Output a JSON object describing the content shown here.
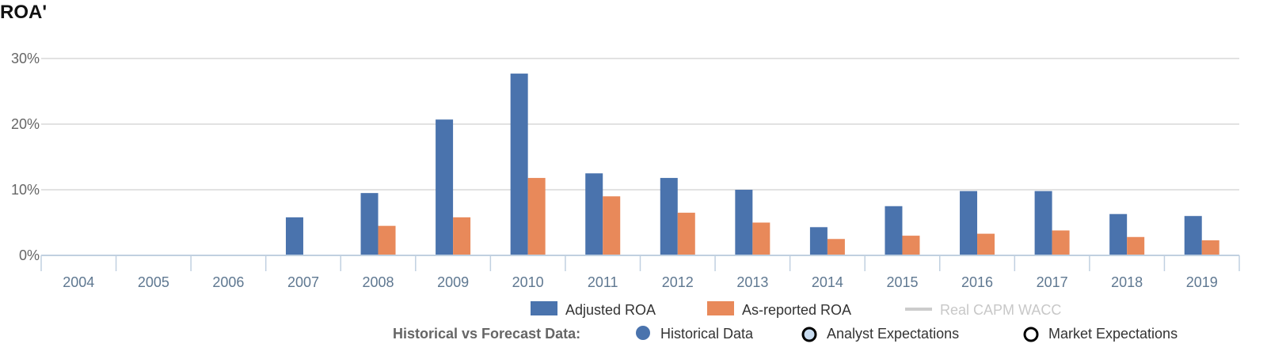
{
  "chart_data": {
    "type": "bar",
    "title": "ROA'",
    "xlabel": "",
    "ylabel": "",
    "ylim": [
      0,
      30
    ],
    "y_ticks": [
      "0%",
      "10%",
      "20%",
      "30%"
    ],
    "y_tick_values": [
      0,
      10,
      20,
      30
    ],
    "grid": true,
    "legend_position": "bottom",
    "categories": [
      "2004",
      "2005",
      "2006",
      "2007",
      "2008",
      "2009",
      "2010",
      "2011",
      "2012",
      "2013",
      "2014",
      "2015",
      "2016",
      "2017",
      "2018",
      "2019"
    ],
    "series": [
      {
        "name": "Adjusted ROA",
        "color": "#4a73ad",
        "values": [
          null,
          null,
          null,
          5.8,
          9.5,
          20.7,
          27.7,
          12.5,
          11.8,
          10.0,
          4.3,
          7.5,
          9.8,
          9.8,
          6.3,
          6.0
        ]
      },
      {
        "name": "As-reported ROA",
        "color": "#e8895a",
        "values": [
          null,
          null,
          null,
          null,
          4.5,
          5.8,
          11.8,
          9.0,
          6.5,
          5.0,
          2.5,
          3.0,
          3.3,
          3.8,
          2.8,
          2.3
        ]
      }
    ],
    "extra_legend": {
      "name": "Real CAPM WACC",
      "color": "#cccccc",
      "disabled": true
    },
    "forecast_legend": {
      "label": "Historical vs Forecast Data:",
      "items": [
        {
          "name": "Historical Data",
          "icon": "filled-circle-icon",
          "color": "#4a73ad"
        },
        {
          "name": "Analyst Expectations",
          "icon": "ring-light-icon",
          "color": "#c8dcf0"
        },
        {
          "name": "Market Expectations",
          "icon": "ring-icon",
          "color": "#ffffff"
        }
      ]
    }
  }
}
